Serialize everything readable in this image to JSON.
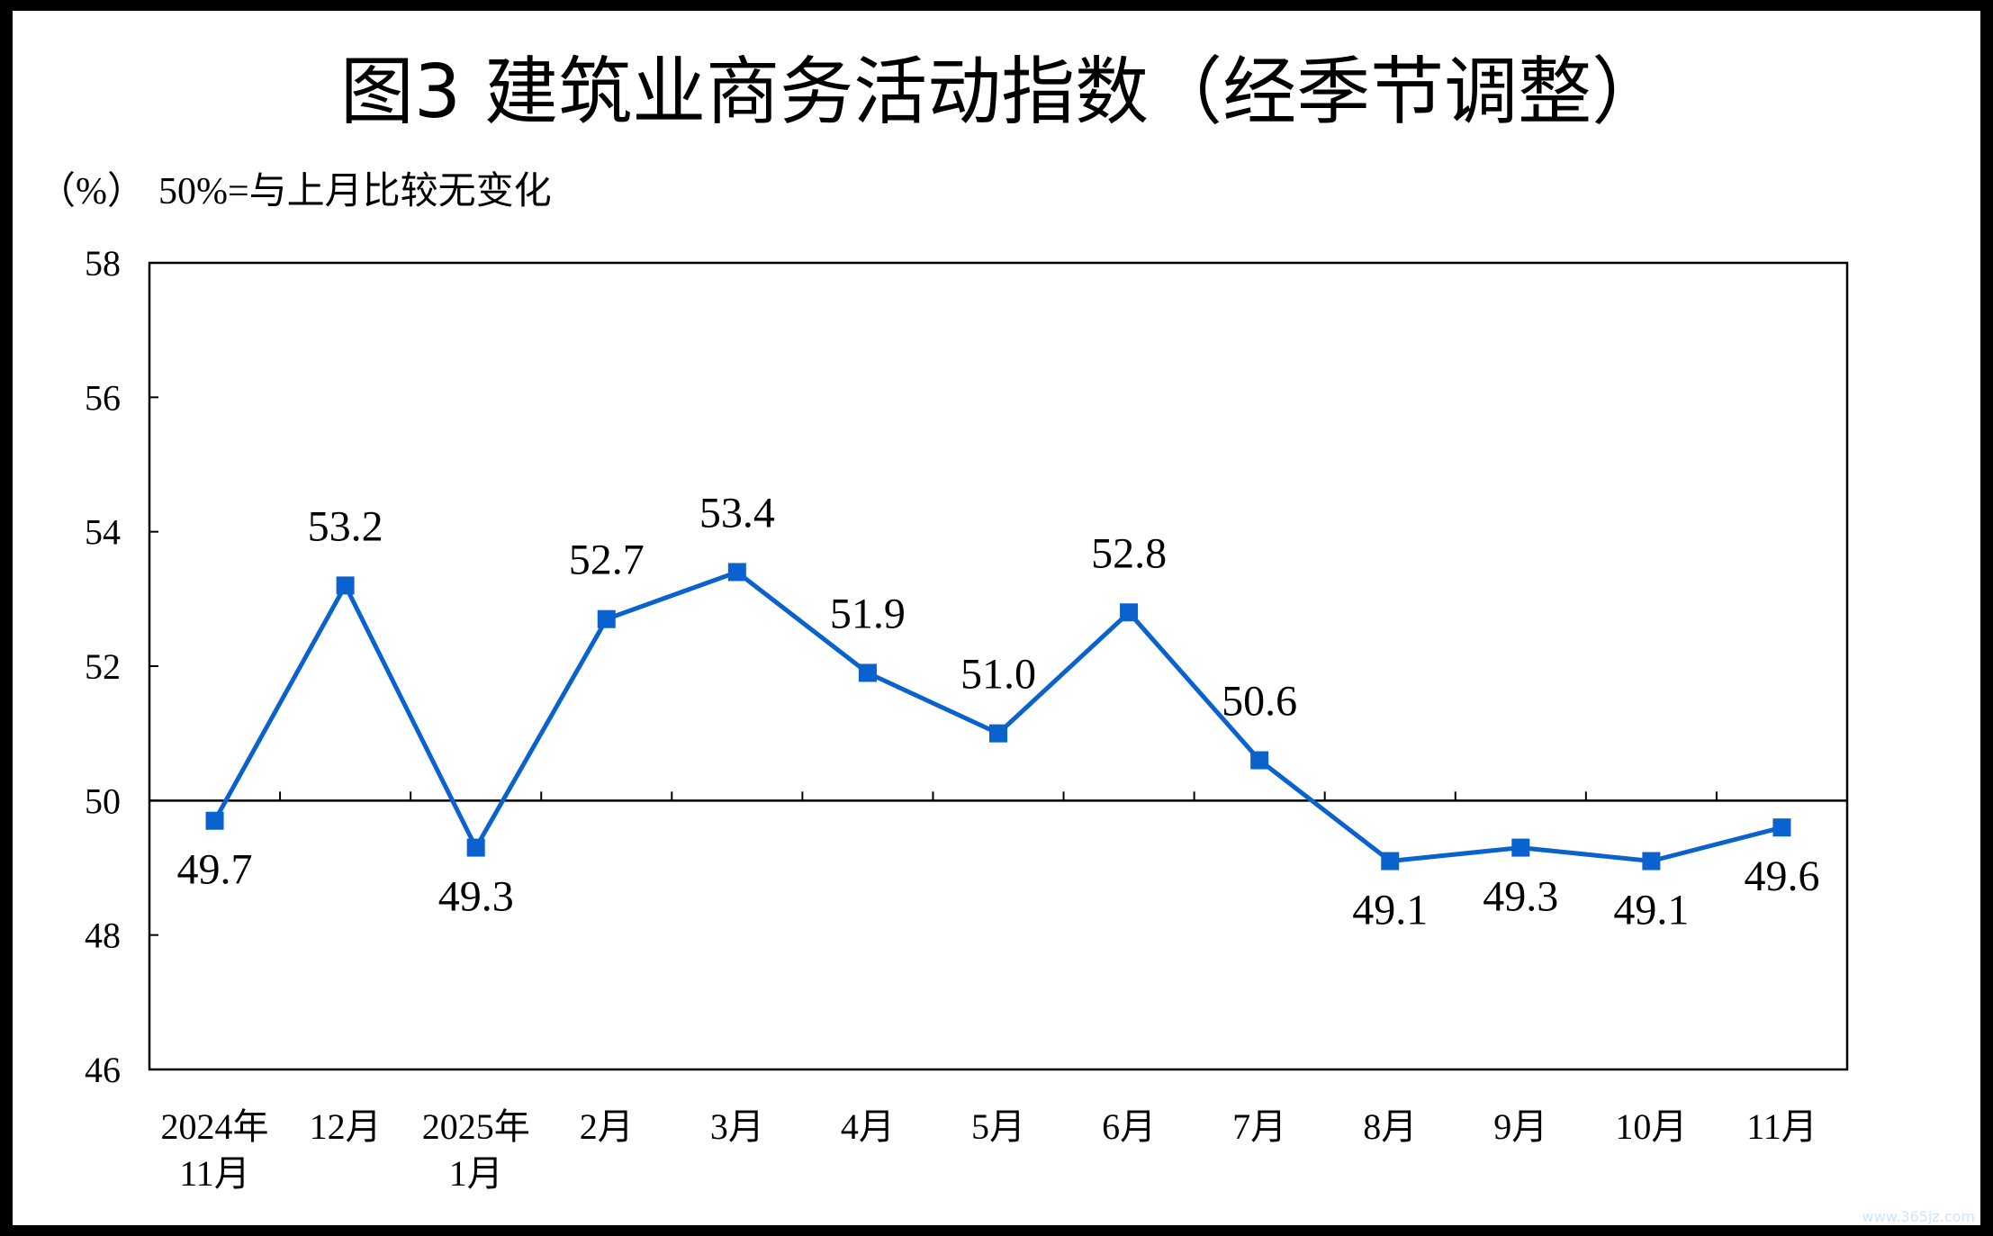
{
  "colors": {
    "series": "#0a62cf",
    "axis": "#000000",
    "background": "#ffffff",
    "border": "#000000"
  },
  "chart_data": {
    "type": "line",
    "title": "图3  建筑业商务活动指数（经季节调整）",
    "ylabel": "（%）",
    "note": "50%=与上月比较无变化",
    "ylim": [
      46,
      58
    ],
    "yticks": [
      46,
      48,
      50,
      52,
      54,
      56,
      58
    ],
    "reference_line": 50,
    "grid": false,
    "legend": "none",
    "categories": [
      [
        "2024年",
        "11月"
      ],
      [
        "12月"
      ],
      [
        "2025年",
        "1月"
      ],
      [
        "2月"
      ],
      [
        "3月"
      ],
      [
        "4月"
      ],
      [
        "5月"
      ],
      [
        "6月"
      ],
      [
        "7月"
      ],
      [
        "8月"
      ],
      [
        "9月"
      ],
      [
        "10月"
      ],
      [
        "11月"
      ]
    ],
    "series": [
      {
        "values": [
          49.7,
          53.2,
          49.3,
          52.7,
          53.4,
          51.9,
          51.0,
          52.8,
          50.6,
          49.1,
          49.3,
          49.1,
          49.6
        ],
        "labels": [
          "49.7",
          "53.2",
          "49.3",
          "52.7",
          "53.4",
          "51.9",
          "51.0",
          "52.8",
          "50.6",
          "49.1",
          "49.3",
          "49.1",
          "49.6"
        ]
      }
    ]
  },
  "watermark": "www.365jz.com"
}
